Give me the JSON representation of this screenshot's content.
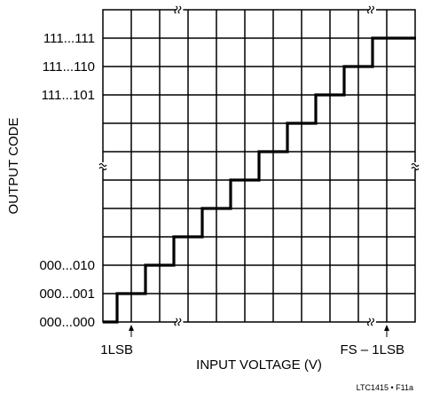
{
  "chart_data": {
    "type": "line",
    "title": "",
    "xlabel": "INPUT VOLTAGE (V)",
    "ylabel": "OUTPUT CODE",
    "x_annotations": [
      "1LSB",
      "FS – 1LSB"
    ],
    "y_tick_labels_bottom": [
      "000...000",
      "000...001",
      "000...010"
    ],
    "y_tick_labels_top": [
      "111...101",
      "111...110",
      "111...111"
    ],
    "axis_breaks": true,
    "grid": true,
    "series": [
      {
        "step": "transfer",
        "x_steps": [
          0,
          1,
          2,
          3,
          4,
          5,
          6,
          7,
          8,
          9
        ],
        "codes": [
          0,
          1,
          2,
          3,
          4,
          5,
          6,
          7,
          8,
          9,
          10
        ]
      }
    ],
    "footnote": "LTC1415 • F11a"
  }
}
